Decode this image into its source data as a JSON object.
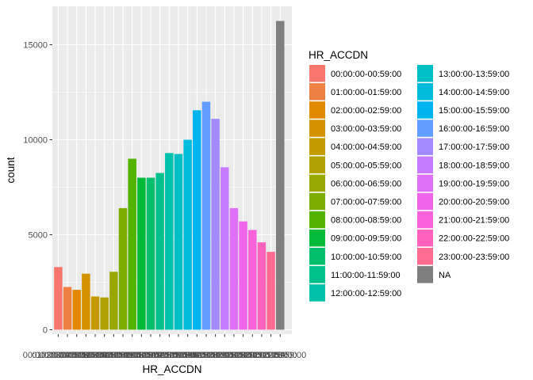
{
  "chart_data": {
    "type": "bar",
    "xlabel": "HR_ACCDN",
    "ylabel": "count",
    "ylim": [
      0,
      17000
    ],
    "yticks": [
      0,
      5000,
      10000,
      15000
    ],
    "ytick_labels": [
      "0",
      "5000",
      "10000",
      "15000"
    ],
    "grid": true,
    "legend": {
      "title": "HR_ACCDN",
      "position": "right",
      "columns": 2
    },
    "categories": [
      "00:00:00-00:59:00",
      "01:00:00-01:59:00",
      "02:00:00-02:59:00",
      "03:00:00-03:59:00",
      "04:00:00-04:59:00",
      "05:00:00-05:59:00",
      "06:00:00-06:59:00",
      "07:00:00-07:59:00",
      "08:00:00-08:59:00",
      "09:00:00-09:59:00",
      "10:00:00-10:59:00",
      "11:00:00-11:59:00",
      "12:00:00-12:59:00",
      "13:00:00-13:59:00",
      "14:00:00-14:59:00",
      "15:00:00-15:59:00",
      "16:00:00-16:59:00",
      "17:00:00-17:59:00",
      "18:00:00-18:59:00",
      "19:00:00-19:59:00",
      "20:00:00-20:59:00",
      "21:00:00-21:59:00",
      "22:00:00-22:59:00",
      "23:00:00-23:59:00",
      "NA"
    ],
    "values": [
      3300,
      2250,
      2100,
      2950,
      1750,
      1700,
      3050,
      6400,
      9000,
      8000,
      8000,
      8250,
      9300,
      9250,
      10000,
      11550,
      12000,
      11100,
      8550,
      6400,
      5700,
      5250,
      4600,
      4100,
      16250
    ],
    "colors": [
      "#F8766D",
      "#EE8043",
      "#E38900",
      "#D49200",
      "#C49A00",
      "#B0A100",
      "#99A800",
      "#7CAE00",
      "#53B400",
      "#00BA38",
      "#00BE6C",
      "#00C08B",
      "#00C1AA",
      "#00BFC4",
      "#00BBDC",
      "#00B4F0",
      "#619CFF",
      "#A58AFF",
      "#C77CFF",
      "#DF70F8",
      "#F066EA",
      "#FA62DB",
      "#FF62BC",
      "#FF6C91",
      "#7F7F7F"
    ]
  }
}
